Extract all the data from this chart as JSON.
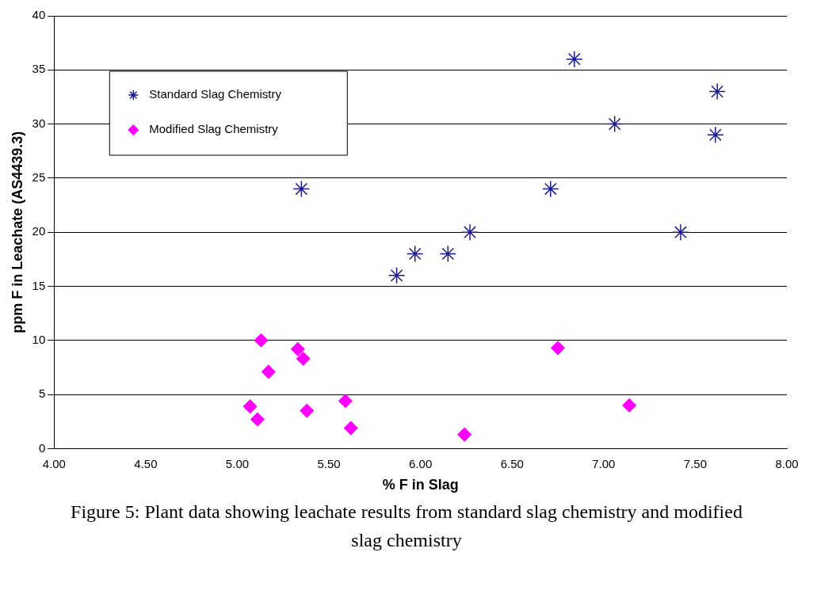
{
  "chart_data": {
    "type": "scatter",
    "xlabel": "% F in Slag",
    "ylabel": "ppm F in Leachate (AS4439.3)",
    "xlim": [
      4,
      8
    ],
    "xticks": [
      {
        "value": 4,
        "label": "4.00"
      },
      {
        "value": 4.5,
        "label": "4.50"
      },
      {
        "value": 5,
        "label": "5.00"
      },
      {
        "value": 5.5,
        "label": "5.50"
      },
      {
        "value": 6,
        "label": "6.00"
      },
      {
        "value": 6.5,
        "label": "6.50"
      },
      {
        "value": 7,
        "label": "7.00"
      },
      {
        "value": 7.5,
        "label": "7.50"
      },
      {
        "value": 8,
        "label": "8.00"
      }
    ],
    "ylim": [
      0,
      40
    ],
    "yticks": [
      0,
      5,
      10,
      15,
      20,
      25,
      30,
      35,
      40
    ],
    "grid": "y",
    "legend": "top left",
    "series": [
      {
        "name": "Standard Slag Chemistry",
        "color": "#1a1a8c",
        "marker": "cross",
        "x": [
          5.35,
          5.87,
          5.97,
          6.15,
          6.27,
          6.71,
          6.84,
          7.06,
          7.42,
          7.62,
          7.61
        ],
        "values": [
          24,
          16,
          18,
          18,
          20,
          24,
          36,
          30,
          20,
          33,
          29
        ]
      },
      {
        "name": "Modified Slag Chemistry",
        "color": "#ff00ff",
        "marker": "diamond",
        "x": [
          5.13,
          5.33,
          5.36,
          5.17,
          5.07,
          5.11,
          5.38,
          5.59,
          5.62,
          6.24,
          6.75,
          7.14
        ],
        "values": [
          10,
          9.2,
          8.3,
          7.1,
          3.9,
          2.7,
          3.5,
          4.4,
          1.9,
          1.3,
          9.3,
          4.0
        ]
      }
    ],
    "annotations": [
      "Figure 5: Plant data showing leachate results from standard slag chemistry and modified slag chemistry"
    ]
  }
}
